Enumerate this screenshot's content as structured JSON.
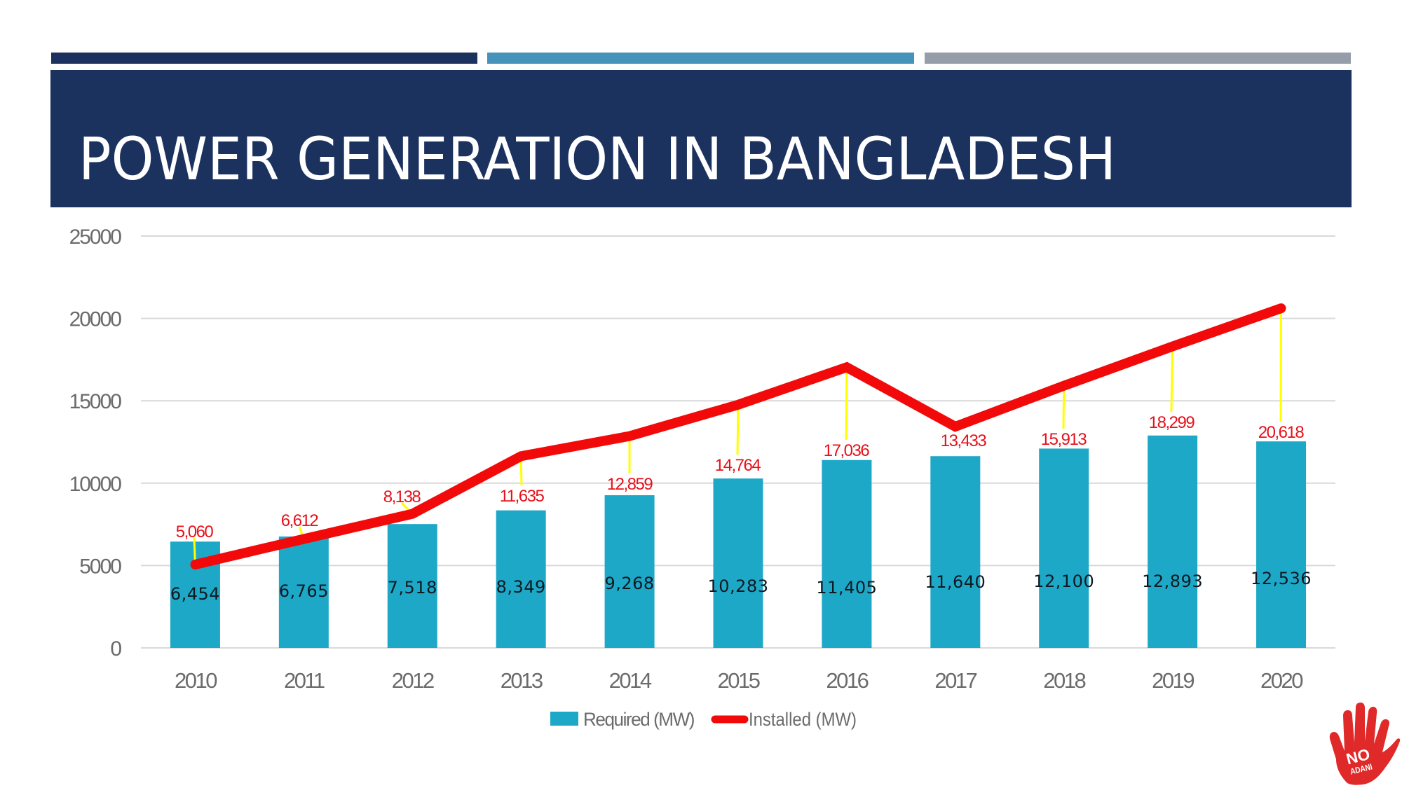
{
  "header": {
    "title": "POWER GENERATION IN BANGLADESH",
    "colors": {
      "strip_1": "#1c325e",
      "strip_2": "#4592bb",
      "strip_3": "#959ea8",
      "banner": "#1c325e",
      "title_text": "#ffffff"
    }
  },
  "logo": {
    "name": "no-adani-hand-logo",
    "text_line_1": "NO",
    "text_line_2": "ADANI",
    "color": "#e02a2a"
  },
  "chart_data": {
    "type": "bar",
    "title": "",
    "xlabel": "",
    "ylabel": "",
    "ylim": [
      0,
      25000
    ],
    "yticks": [
      0,
      5000,
      10000,
      15000,
      20000,
      25000
    ],
    "ytick_labels": [
      "0",
      "5000",
      "10000",
      "15000",
      "20000",
      "25000"
    ],
    "grid": true,
    "legend_position": "bottom",
    "categories": [
      "2010",
      "2011",
      "2012",
      "2013",
      "2014",
      "2015",
      "2016",
      "2017",
      "2018",
      "2019",
      "2020"
    ],
    "series": [
      {
        "name": "Required (MW)",
        "type": "bar",
        "color": "#1ea8c8",
        "label_color": "#0e1a22",
        "values": [
          6454,
          6765,
          7518,
          8349,
          9268,
          10283,
          11405,
          11640,
          12100,
          12893,
          12536
        ],
        "labels": [
          "6,454",
          "6,765",
          "7,518",
          "8,349",
          "9,268",
          "10,283",
          "11,405",
          "11,640",
          "12,100",
          "12,893",
          "12,536"
        ]
      },
      {
        "name": "Installed (MW)",
        "type": "line",
        "color": "#f20a0a",
        "label_color": "#e8101a",
        "leader_color": "#ffff00",
        "values": [
          5060,
          6612,
          8138,
          11635,
          12859,
          14764,
          17036,
          13433,
          15913,
          18299,
          20618
        ],
        "labels": [
          "5,060",
          "6,612",
          "8,138",
          "11,635",
          "12,859",
          "14,764",
          "17,036",
          "13,433",
          "15,913",
          "18,299",
          "20,618"
        ]
      }
    ]
  }
}
